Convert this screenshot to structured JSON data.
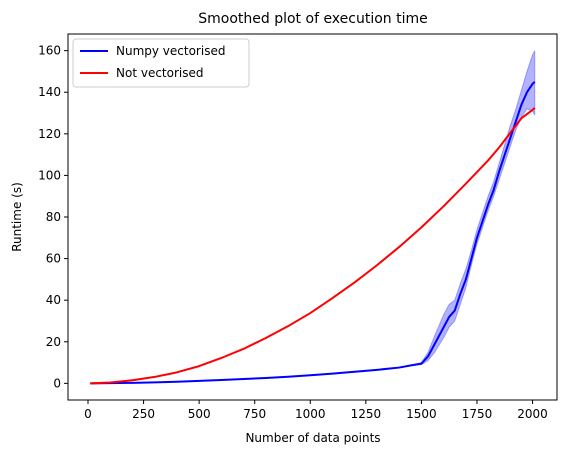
{
  "chart_data": {
    "type": "line",
    "title": "Smoothed plot of execution time",
    "xlabel": "Number of data points",
    "ylabel": "Runtime (s)",
    "xlim": [
      -90,
      2110
    ],
    "ylim": [
      -8,
      168
    ],
    "xticks": [
      0,
      250,
      500,
      750,
      1000,
      1250,
      1500,
      1750,
      2000
    ],
    "yticks": [
      0,
      20,
      40,
      60,
      80,
      100,
      120,
      140,
      160
    ],
    "grid": false,
    "legend_position": "top-left",
    "series": [
      {
        "name": "Numpy vectorised",
        "color": "#0000ff",
        "x": [
          10,
          100,
          200,
          300,
          400,
          500,
          600,
          700,
          800,
          900,
          1000,
          1100,
          1200,
          1300,
          1400,
          1450,
          1500,
          1530,
          1560,
          1600,
          1625,
          1650,
          1675,
          1700,
          1725,
          1750,
          1775,
          1800,
          1825,
          1850,
          1875,
          1900,
          1925,
          1950,
          1975,
          2000,
          2010
        ],
        "y": [
          0,
          0.1,
          0.25,
          0.5,
          0.8,
          1.2,
          1.6,
          2.1,
          2.6,
          3.2,
          3.9,
          4.7,
          5.6,
          6.5,
          7.6,
          8.6,
          9.5,
          13,
          19,
          27,
          32,
          35,
          43,
          50,
          60,
          70,
          78,
          86,
          93,
          102,
          110,
          118,
          126,
          134,
          140,
          144,
          145
        ],
        "band_lower": [
          0,
          0.1,
          0.25,
          0.5,
          0.8,
          1.2,
          1.6,
          2.1,
          2.6,
          3.2,
          3.9,
          4.7,
          5.6,
          6.5,
          7.6,
          8.6,
          9.0,
          11,
          15,
          22,
          27,
          30,
          38,
          46,
          57,
          67,
          75,
          83,
          90,
          98,
          106,
          114,
          122,
          128,
          132,
          131,
          129
        ],
        "band_upper": [
          0,
          0.1,
          0.25,
          0.5,
          0.8,
          1.2,
          1.6,
          2.1,
          2.6,
          3.2,
          3.9,
          4.7,
          5.6,
          6.5,
          7.6,
          8.6,
          10,
          15,
          23,
          33,
          38,
          40,
          48,
          55,
          64,
          74,
          82,
          90,
          97,
          106,
          115,
          124,
          132,
          141,
          150,
          158,
          160
        ]
      },
      {
        "name": "Not vectorised",
        "color": "#ff0000",
        "x": [
          10,
          100,
          200,
          300,
          400,
          500,
          600,
          700,
          800,
          900,
          1000,
          1100,
          1200,
          1300,
          1400,
          1500,
          1600,
          1700,
          1800,
          1850,
          1900,
          1950,
          2000,
          2010
        ],
        "y": [
          0,
          0.4,
          1.5,
          3.1,
          5.3,
          8.3,
          12.2,
          16.6,
          21.8,
          27.5,
          33.8,
          41.0,
          48.6,
          56.8,
          65.6,
          75.0,
          85.2,
          96.0,
          107.2,
          113.5,
          120.5,
          127.5,
          131.5,
          132.5
        ]
      }
    ]
  }
}
